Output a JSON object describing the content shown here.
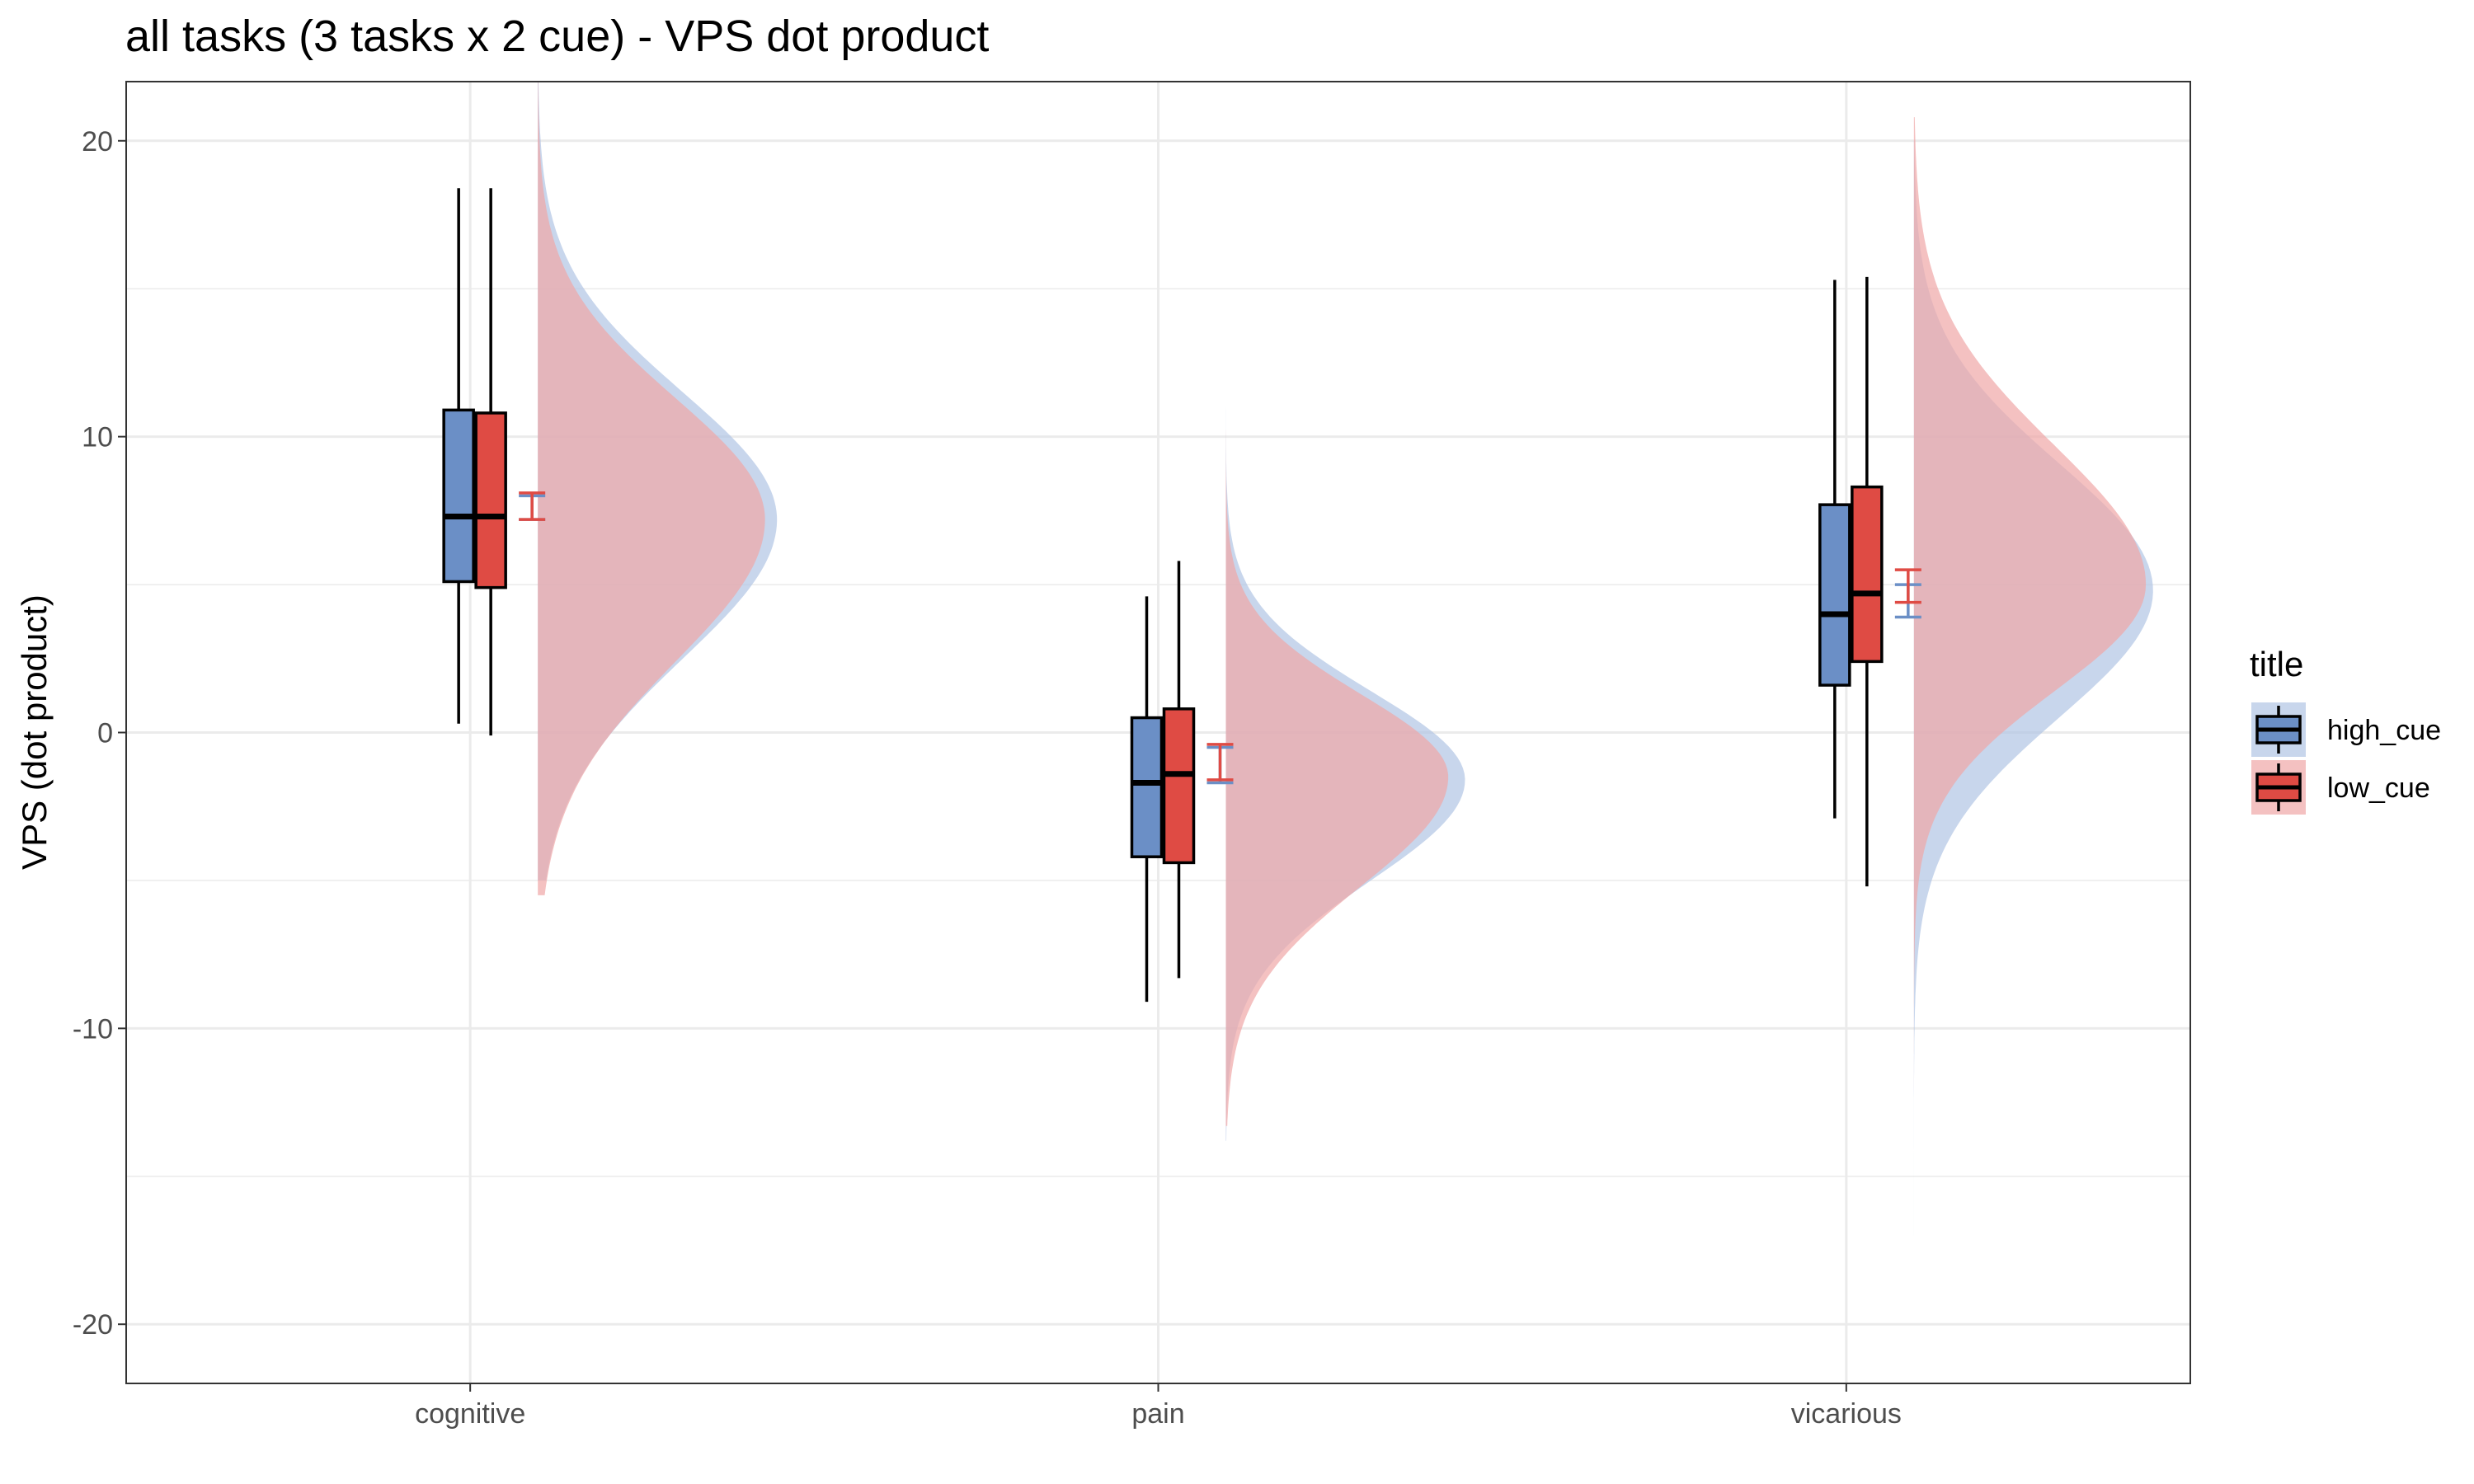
{
  "chart_data": {
    "type": "raincloud",
    "title": "all tasks  (3 tasks x 2 cue) - VPS dot product",
    "xlabel": "",
    "ylabel": "VPS (dot product)",
    "ylim": [
      -22,
      22
    ],
    "yticks": [
      -20,
      -10,
      0,
      10,
      20
    ],
    "grid": true,
    "categories": [
      "cognitive",
      "pain",
      "vicarious"
    ],
    "legend": {
      "title": "title",
      "position": "right",
      "entries": [
        "high_cue",
        "low_cue"
      ]
    },
    "series": [
      {
        "name": "high_cue",
        "color": "#6b8fc6",
        "density_color": "#b0c4e4",
        "box": [
          {
            "min": 0.3,
            "q1": 5.1,
            "median": 7.3,
            "q3": 10.9,
            "max": 18.4
          },
          {
            "min": -9.1,
            "q1": -4.2,
            "median": -1.7,
            "q3": 0.5,
            "max": 4.6
          },
          {
            "min": -2.9,
            "q1": 1.6,
            "median": 4.0,
            "q3": 7.7,
            "max": 15.3
          }
        ],
        "mean_ci": [
          {
            "lower": 7.2,
            "upper": 8.0
          },
          {
            "lower": -1.7,
            "upper": -0.5
          },
          {
            "lower": 3.9,
            "upper": 5.0
          }
        ],
        "density": [
          {
            "min": -5.0,
            "max": 22.0,
            "peak": 7.2,
            "sd_lower": 4.7,
            "sd_upper": 4.3,
            "height": 1.0
          },
          {
            "min": -13.8,
            "max": 15.4,
            "peak": -1.6,
            "sd_lower": 3.4,
            "sd_upper": 3.0,
            "height": 1.0
          },
          {
            "min": -17.0,
            "max": 20.0,
            "peak": 4.8,
            "sd_lower": 4.3,
            "sd_upper": 4.3,
            "height": 1.0
          }
        ]
      },
      {
        "name": "low_cue",
        "color": "#df4b44",
        "density_color": "#f0a6a6",
        "box": [
          {
            "min": -0.1,
            "q1": 4.9,
            "median": 7.3,
            "q3": 10.8,
            "max": 18.4
          },
          {
            "min": -8.3,
            "q1": -4.4,
            "median": -1.4,
            "q3": 0.8,
            "max": 5.8
          },
          {
            "min": -5.2,
            "q1": 2.4,
            "median": 4.7,
            "q3": 8.3,
            "max": 15.4
          }
        ],
        "mean_ci": [
          {
            "lower": 7.2,
            "upper": 8.1
          },
          {
            "lower": -1.6,
            "upper": -0.4
          },
          {
            "lower": 4.4,
            "upper": 5.5
          }
        ],
        "density": [
          {
            "min": -5.5,
            "max": 22.0,
            "peak": 7.2,
            "sd_lower": 4.8,
            "sd_upper": 4.1,
            "height": 0.95
          },
          {
            "min": -13.3,
            "max": 15.5,
            "peak": -1.5,
            "sd_lower": 3.7,
            "sd_upper": 2.8,
            "height": 0.93
          },
          {
            "min": -12.0,
            "max": 20.8,
            "peak": 5.0,
            "sd_lower": 3.6,
            "sd_upper": 4.7,
            "height": 0.97
          }
        ]
      }
    ]
  }
}
